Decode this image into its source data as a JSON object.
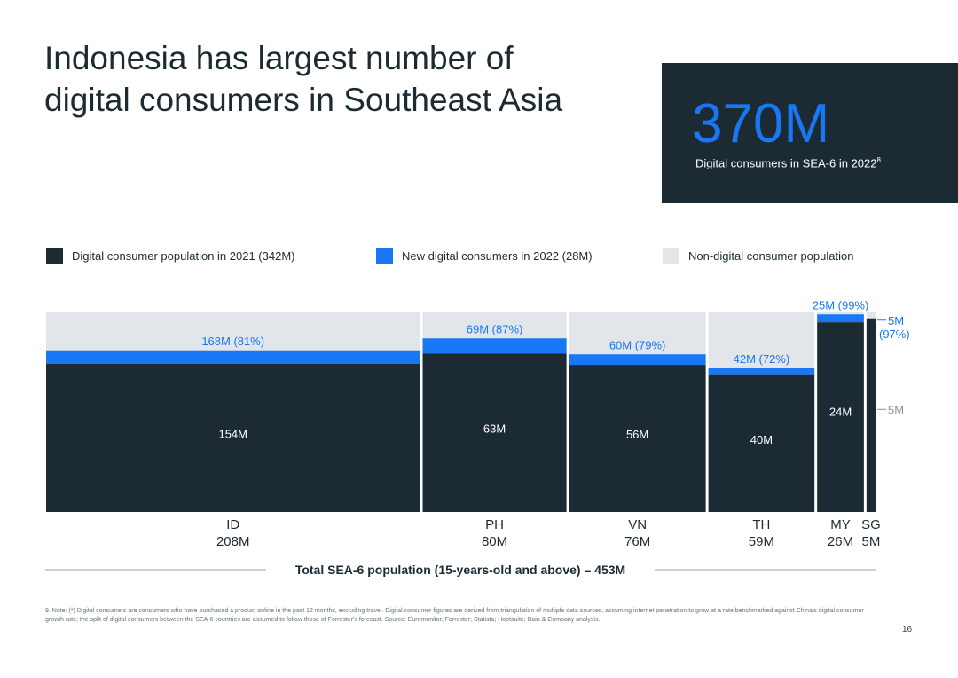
{
  "title": "Indonesia has largest number of digital consumers in Southeast Asia",
  "stat": {
    "value": "370M",
    "label": "Digital consumers in SEA-6 in 2022",
    "label_ref": "8"
  },
  "legend": [
    {
      "label": "Digital consumer population in 2021 (342M)",
      "color": "#1c2b33"
    },
    {
      "label": "New digital consumers in 2022 (28M)",
      "color": "#1877f2"
    },
    {
      "label": "Non-digital consumer population",
      "color": "#e2e5e9"
    }
  ],
  "chart_data": {
    "type": "bar",
    "subtype": "marimekko",
    "categories": [
      "ID",
      "PH",
      "VN",
      "TH",
      "MY",
      "SG"
    ],
    "total_population_labels": [
      "208M",
      "80M",
      "76M",
      "59M",
      "26M",
      "5M"
    ],
    "total_population": [
      208,
      80,
      76,
      59,
      26,
      5
    ],
    "digital_2022_labels": [
      "168M (81%)",
      "69M (87%)",
      "60M (79%)",
      "42M (72%)",
      "25M (99%)",
      "5M (97%)"
    ],
    "digital_2022_share": [
      81,
      87,
      79,
      72,
      99,
      97
    ],
    "series": [
      {
        "name": "Digital consumer population in 2021 (342M)",
        "labels": [
          "154M",
          "63M",
          "56M",
          "40M",
          "24M",
          "5M"
        ],
        "values": [
          154,
          63,
          56,
          40,
          24,
          5
        ]
      },
      {
        "name": "New digital consumers in 2022 (28M)",
        "values": [
          14,
          6,
          4,
          2,
          1,
          0
        ]
      },
      {
        "name": "Non-digital consumer population",
        "values": [
          40,
          11,
          16,
          17,
          1,
          0
        ]
      }
    ],
    "colors": {
      "digital_2021": "#1c2b33",
      "new_2022": "#1877f2",
      "non_digital": "#e2e5e9",
      "label_blue": "#1877f2"
    },
    "total_line": "Total SEA-6 population (15-years-old and above) – 453M"
  },
  "footnote": "9. Note: (*) Digital consumers are consumers who have purchased a product online in the past 12 months, excluding travel. Digital consumer figures are derived from triangulation of multiple data sources, assuming internet penetration to grow at a rate benchmarked against China's digital consumer growth rate; the split of digital consumers between the SEA-6 countries are assumed to follow those of Forrester's forecast. Source: Euromonitor; Forrester; Statista; Hootsuite; Bain & Company analysis.",
  "page_number": "16"
}
